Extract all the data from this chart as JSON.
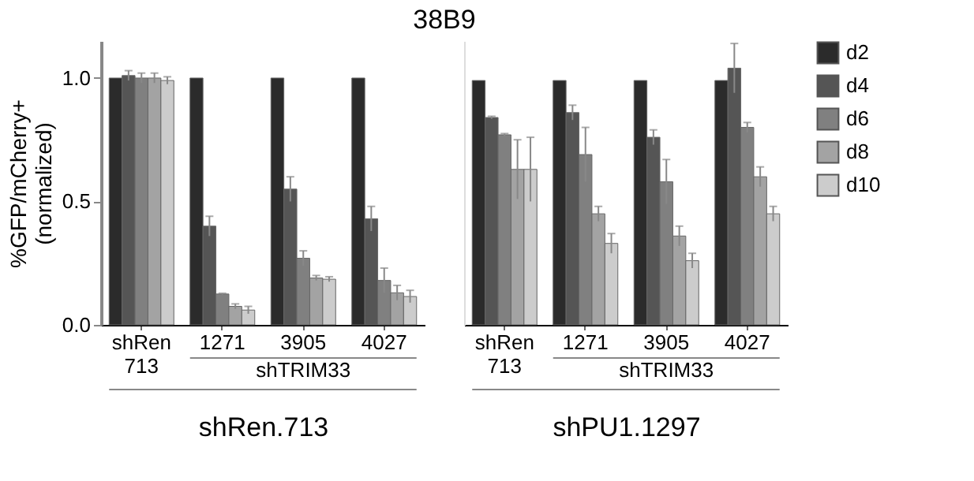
{
  "chart_data": [
    {
      "type": "bar",
      "title": "38B9",
      "ylabel": "%GFP/mCherry+ (normalized)",
      "xlabel": "shRen.713",
      "annotations": [
        "shTRIM33"
      ],
      "categories": [
        "shRen 713",
        "1271",
        "3905",
        "4027"
      ],
      "series": [
        {
          "name": "d2",
          "color": "#2b2b2b",
          "values": [
            1.0,
            1.0,
            1.0,
            1.0
          ],
          "errors": [
            null,
            null,
            null,
            null
          ]
        },
        {
          "name": "d4",
          "color": "#555555",
          "values": [
            1.01,
            0.4,
            0.55,
            0.43
          ],
          "errors": [
            0.02,
            0.04,
            0.05,
            0.05
          ]
        },
        {
          "name": "d6",
          "color": "#808080",
          "values": [
            1.0,
            0.125,
            0.27,
            0.18
          ],
          "errors": [
            0.02,
            0.003,
            0.03,
            0.05
          ]
        },
        {
          "name": "d8",
          "color": "#a3a3a3",
          "values": [
            1.0,
            0.075,
            0.19,
            0.13
          ],
          "errors": [
            0.02,
            0.01,
            0.01,
            0.03
          ]
        },
        {
          "name": "d10",
          "color": "#cccccc",
          "values": [
            0.99,
            0.06,
            0.185,
            0.115
          ],
          "errors": [
            0.015,
            0.015,
            0.01,
            0.025
          ]
        }
      ],
      "ylim": [
        0,
        1.15
      ],
      "yticks": [
        {
          "value": 0,
          "label": "0.0"
        },
        {
          "value": 0.5,
          "label": "0.5"
        },
        {
          "value": 1,
          "label": "1.0"
        }
      ],
      "legend": "right",
      "grid": false
    },
    {
      "type": "bar",
      "xlabel": "shPU1.1297",
      "annotations": [
        "shTRIM33"
      ],
      "categories": [
        "shRen 713",
        "1271",
        "3905",
        "4027"
      ],
      "series": [
        {
          "name": "d2",
          "color": "#2b2b2b",
          "values": [
            0.99,
            0.99,
            0.99,
            0.99
          ],
          "errors": [
            null,
            null,
            null,
            null
          ]
        },
        {
          "name": "d4",
          "color": "#555555",
          "values": [
            0.84,
            0.86,
            0.76,
            1.04
          ],
          "errors": [
            0.005,
            0.03,
            0.03,
            0.1
          ]
        },
        {
          "name": "d6",
          "color": "#808080",
          "values": [
            0.77,
            0.69,
            0.58,
            0.8
          ],
          "errors": [
            0.005,
            0.11,
            0.09,
            0.02
          ]
        },
        {
          "name": "d8",
          "color": "#a3a3a3",
          "values": [
            0.63,
            0.45,
            0.36,
            0.6
          ],
          "errors": [
            0.12,
            0.03,
            0.04,
            0.04
          ]
        },
        {
          "name": "d10",
          "color": "#cccccc",
          "values": [
            0.63,
            0.33,
            0.26,
            0.45
          ],
          "errors": [
            0.13,
            0.04,
            0.03,
            0.03
          ]
        }
      ],
      "ylim": [
        0,
        1.15
      ],
      "tick_labels": "x",
      "legend": "right",
      "grid": false
    }
  ]
}
